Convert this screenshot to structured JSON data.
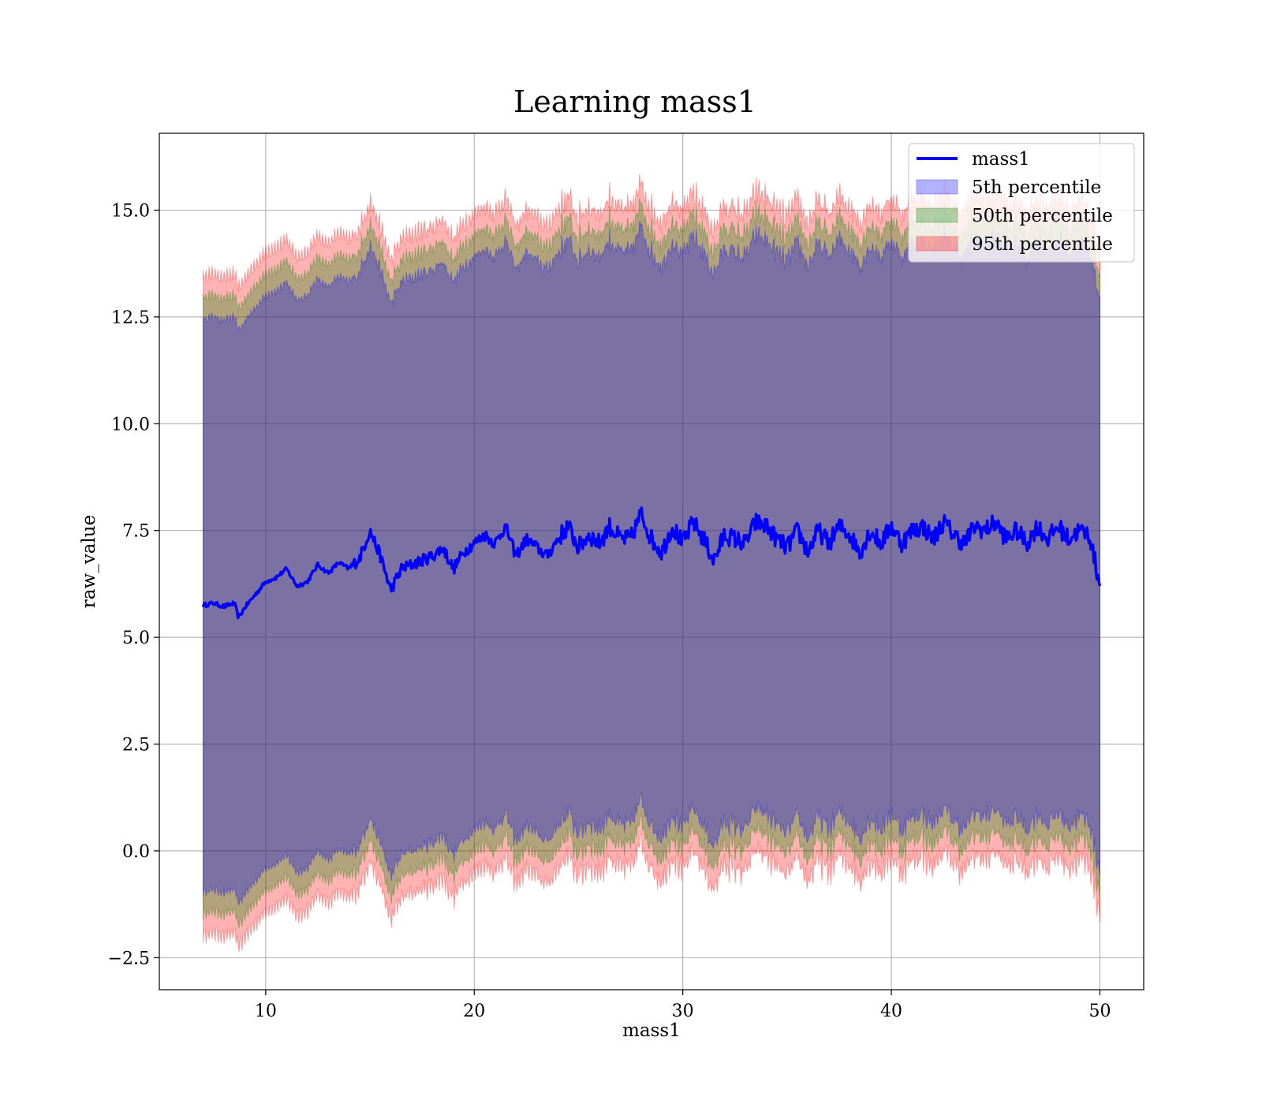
{
  "chart_data": {
    "type": "line",
    "title": "Learning mass1",
    "xlabel": "mass1",
    "ylabel": "raw_value",
    "xlim": [
      4.9,
      52.1
    ],
    "ylim": [
      -3.25,
      16.8
    ],
    "x_ticks": [
      10,
      20,
      30,
      40,
      50
    ],
    "x_tick_labels": [
      "10",
      "20",
      "30",
      "40",
      "50"
    ],
    "y_ticks": [
      -2.5,
      0.0,
      2.5,
      5.0,
      7.5,
      10.0,
      12.5,
      15.0
    ],
    "y_tick_labels": [
      "−2.5",
      "0.0",
      "2.5",
      "5.0",
      "7.5",
      "10.0",
      "12.5",
      "15.0"
    ],
    "grid": true,
    "legend_position": "top-right",
    "x": [
      7.0,
      7.5,
      8.0,
      8.5,
      8.7,
      9.0,
      9.5,
      10.0,
      10.5,
      11.0,
      11.5,
      12.0,
      12.5,
      13.0,
      13.5,
      14.0,
      14.5,
      15.0,
      15.5,
      16.0,
      16.5,
      17.0,
      17.5,
      18.0,
      18.5,
      19.0,
      19.5,
      20.0,
      20.5,
      21.0,
      21.5,
      22.0,
      22.5,
      23.0,
      23.5,
      24.0,
      24.5,
      25.0,
      25.5,
      26.0,
      26.5,
      27.0,
      27.5,
      28.0,
      28.5,
      29.0,
      29.5,
      30.0,
      30.5,
      31.0,
      31.5,
      32.0,
      32.5,
      33.0,
      33.5,
      34.0,
      34.5,
      35.0,
      35.5,
      36.0,
      36.5,
      37.0,
      37.5,
      38.0,
      38.5,
      39.0,
      39.5,
      40.0,
      40.5,
      41.0,
      41.5,
      42.0,
      42.5,
      43.0,
      43.5,
      44.0,
      44.5,
      45.0,
      45.5,
      46.0,
      46.5,
      47.0,
      47.5,
      48.0,
      48.5,
      49.0,
      49.5,
      50.0
    ],
    "series": [
      {
        "name": "mass1",
        "kind": "line",
        "color": "#0000ff",
        "values": [
          5.75,
          5.8,
          5.72,
          5.8,
          5.45,
          5.7,
          6.0,
          6.3,
          6.4,
          6.6,
          6.2,
          6.3,
          6.7,
          6.5,
          6.75,
          6.6,
          6.85,
          7.5,
          6.9,
          6.1,
          6.6,
          6.7,
          6.8,
          6.9,
          7.1,
          6.6,
          7.0,
          7.2,
          7.4,
          7.2,
          7.6,
          6.9,
          7.3,
          7.1,
          6.9,
          7.3,
          7.6,
          7.1,
          7.4,
          7.2,
          7.6,
          7.3,
          7.3,
          7.9,
          7.3,
          7.0,
          7.6,
          7.2,
          7.7,
          7.3,
          6.8,
          7.4,
          7.3,
          7.2,
          7.7,
          7.6,
          7.3,
          7.1,
          7.5,
          7.0,
          7.5,
          7.2,
          7.6,
          7.4,
          7.0,
          7.5,
          7.2,
          7.6,
          7.2,
          7.5,
          7.6,
          7.3,
          7.7,
          7.4,
          7.2,
          7.6,
          7.5,
          7.7,
          7.3,
          7.5,
          7.2,
          7.6,
          7.3,
          7.6,
          7.3,
          7.5,
          7.4,
          6.2
        ]
      },
      {
        "name": "5th percentile",
        "kind": "band",
        "color": "#0000ff",
        "offset": 6.7
      },
      {
        "name": "50th percentile",
        "kind": "band",
        "color": "#008000",
        "offset": 7.2
      },
      {
        "name": "95th percentile",
        "kind": "band",
        "color": "#ff0000",
        "offset": 7.7
      }
    ]
  }
}
